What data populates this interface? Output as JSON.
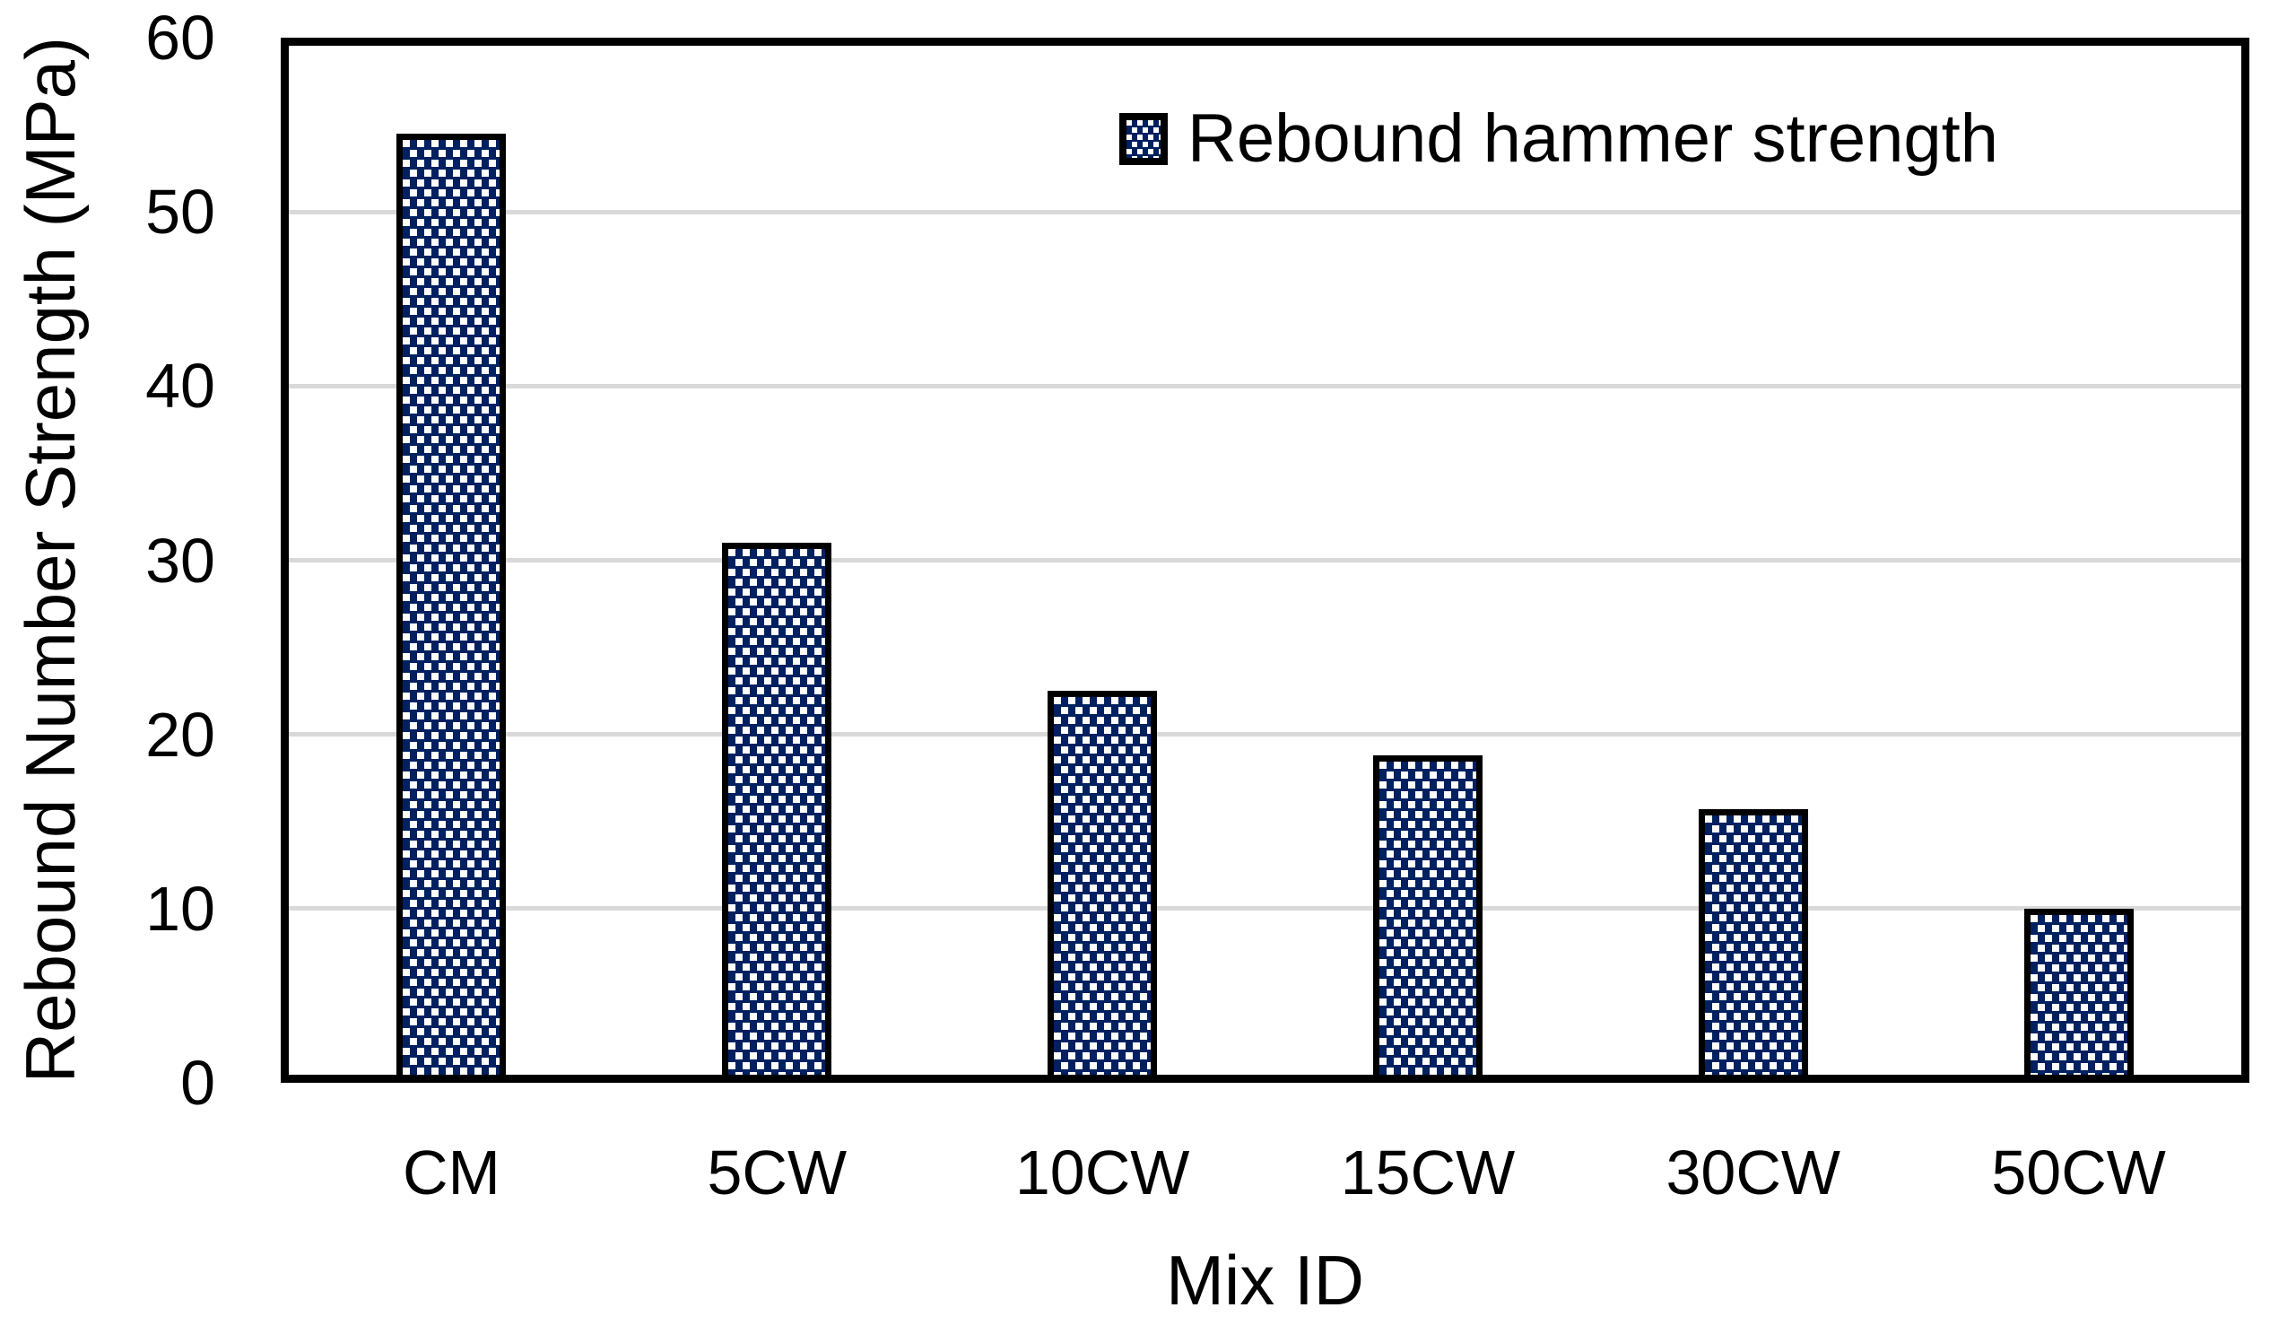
{
  "chart_data": {
    "type": "bar",
    "title": "",
    "categories": [
      "CM",
      "5CW",
      "10CW",
      "15CW",
      "30CW",
      "50CW"
    ],
    "series": [
      {
        "name": "Rebound hammer strength",
        "values": [
          54.5,
          31.0,
          22.5,
          18.8,
          15.7,
          10.0
        ]
      }
    ],
    "xlabel": "Mix ID",
    "ylabel": "Rebound Number Strength (MPa)",
    "ylim": [
      0,
      60
    ],
    "yticks": [
      0,
      10,
      20,
      30,
      40,
      50,
      60
    ],
    "grid": "horizontal gridlines at 10-50",
    "legend_position": "top-right inside plot",
    "bar_color": "#002060",
    "bar_pattern": "white offset square dots",
    "pattern_dot_color": "#ffffff",
    "bar_border_color": "#000000",
    "gridline_color": "#d9d9d9",
    "axis_frame_color": "#000000",
    "background_color": "#ffffff"
  },
  "legend": {
    "label": "Rebound hammer strength"
  }
}
